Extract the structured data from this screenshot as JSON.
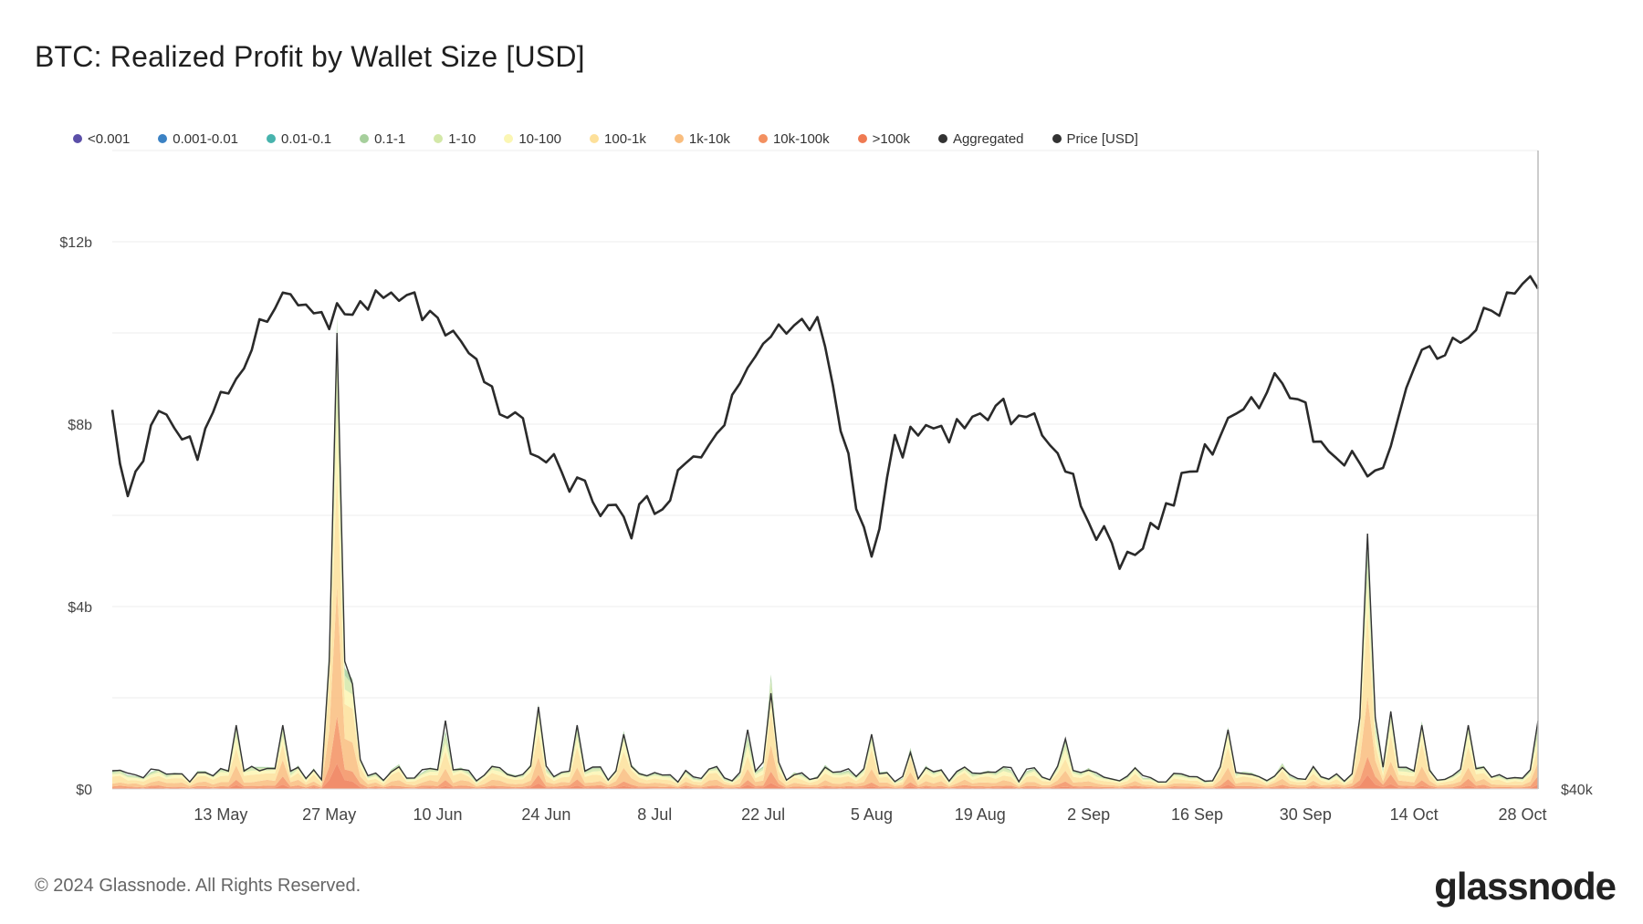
{
  "header": {
    "title": "BTC: Realized Profit by Wallet Size [USD]"
  },
  "footer": {
    "copyright": "© 2024 Glassnode. All Rights Reserved.",
    "brand": "glassnode"
  },
  "legend": [
    {
      "label": "<0.001",
      "color": "#5b4fa8"
    },
    {
      "label": "0.001-0.01",
      "color": "#3b82c4"
    },
    {
      "label": "0.01-0.1",
      "color": "#47b3ad"
    },
    {
      "label": "0.1-1",
      "color": "#a6cf9c"
    },
    {
      "label": "1-10",
      "color": "#d3e8a8"
    },
    {
      "label": "10-100",
      "color": "#fbf6b3"
    },
    {
      "label": "100-1k",
      "color": "#fde09a"
    },
    {
      "label": "1k-10k",
      "color": "#f9bd7e"
    },
    {
      "label": "10k-100k",
      "color": "#f39060"
    },
    {
      "label": ">100k",
      "color": "#ef7a52"
    },
    {
      "label": "Aggregated",
      "color": "#333333"
    },
    {
      "label": "Price [USD]",
      "color": "#333333"
    }
  ],
  "chart_data": {
    "type": "area",
    "title": "BTC: Realized Profit by Wallet Size [USD]",
    "x_ticks": [
      "13 May",
      "27 May",
      "10 Jun",
      "24 Jun",
      "8 Jul",
      "22 Jul",
      "5 Aug",
      "19 Aug",
      "2 Sep",
      "16 Sep",
      "30 Sep",
      "14 Oct",
      "28 Oct"
    ],
    "y_left": {
      "ticks": [
        "$0",
        "$4b",
        "$8b",
        "$12b"
      ],
      "range_billion": [
        0,
        14
      ]
    },
    "y_right": {
      "ticks": [
        "$40k"
      ],
      "range_usd": [
        40000,
        80000
      ]
    },
    "grid": true,
    "legend_position": "top",
    "series": [
      {
        "name": "Aggregated",
        "unit": "USD billions",
        "key_points": [
          {
            "x": "2024-04-29",
            "y": 0.4
          },
          {
            "x": "2024-05-07",
            "y": 0.3
          },
          {
            "x": "2024-05-15",
            "y": 1.4
          },
          {
            "x": "2024-05-21",
            "y": 1.4
          },
          {
            "x": "2024-05-28",
            "y": 10.0
          },
          {
            "x": "2024-05-30",
            "y": 2.3
          },
          {
            "x": "2024-06-11",
            "y": 1.5
          },
          {
            "x": "2024-06-23",
            "y": 1.8
          },
          {
            "x": "2024-06-28",
            "y": 1.4
          },
          {
            "x": "2024-07-04",
            "y": 1.2
          },
          {
            "x": "2024-07-20",
            "y": 1.3
          },
          {
            "x": "2024-07-23",
            "y": 2.1
          },
          {
            "x": "2024-08-05",
            "y": 1.2
          },
          {
            "x": "2024-08-10",
            "y": 0.8
          },
          {
            "x": "2024-08-30",
            "y": 1.1
          },
          {
            "x": "2024-09-20",
            "y": 1.3
          },
          {
            "x": "2024-10-08",
            "y": 5.6
          },
          {
            "x": "2024-10-11",
            "y": 1.7
          },
          {
            "x": "2024-10-15",
            "y": 1.4
          },
          {
            "x": "2024-10-21",
            "y": 1.4
          },
          {
            "x": "2024-10-30",
            "y": 1.5
          }
        ]
      },
      {
        "name": "Price [USD]",
        "unit": "USD",
        "key_points": [
          {
            "x": "2024-04-29",
            "y": 63000
          },
          {
            "x": "2024-05-01",
            "y": 58500
          },
          {
            "x": "2024-05-05",
            "y": 64000
          },
          {
            "x": "2024-05-10",
            "y": 61000
          },
          {
            "x": "2024-05-20",
            "y": 71000
          },
          {
            "x": "2024-05-27",
            "y": 69500
          },
          {
            "x": "2024-06-06",
            "y": 71000
          },
          {
            "x": "2024-06-12",
            "y": 68000
          },
          {
            "x": "2024-06-24",
            "y": 60500
          },
          {
            "x": "2024-07-05",
            "y": 56500
          },
          {
            "x": "2024-07-14",
            "y": 60800
          },
          {
            "x": "2024-07-22",
            "y": 68000
          },
          {
            "x": "2024-07-29",
            "y": 69500
          },
          {
            "x": "2024-08-05",
            "y": 54000
          },
          {
            "x": "2024-08-08",
            "y": 61500
          },
          {
            "x": "2024-08-25",
            "y": 64000
          },
          {
            "x": "2024-09-06",
            "y": 53900
          },
          {
            "x": "2024-09-20",
            "y": 63000
          },
          {
            "x": "2024-09-27",
            "y": 66000
          },
          {
            "x": "2024-10-03",
            "y": 60800
          },
          {
            "x": "2024-10-10",
            "y": 60200
          },
          {
            "x": "2024-10-15",
            "y": 67000
          },
          {
            "x": "2024-10-21",
            "y": 69000
          },
          {
            "x": "2024-10-30",
            "y": 72000
          }
        ]
      }
    ]
  }
}
